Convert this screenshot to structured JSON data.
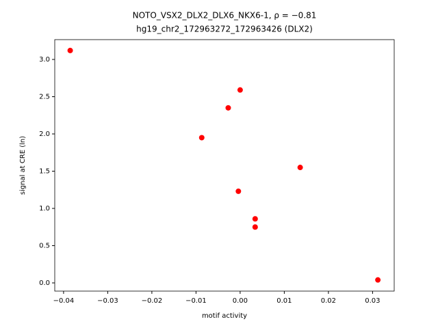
{
  "chart_data": {
    "type": "scatter",
    "title": "NOTO_VSX2_DLX2_DLX6_NKX6-1, ρ = −0.81",
    "subtitle": "hg19_chr2_172963272_172963426 (DLX2)",
    "x_label": "motif activity",
    "y_label": "signal at CRE (ln)",
    "series": [
      {
        "color": "#ff0000",
        "x": [
          -0.0385,
          0.0,
          -0.0027,
          -0.0087,
          0.0136,
          -0.0004,
          0.0034,
          0.0034,
          0.0312
        ],
        "values": [
          3.12,
          2.59,
          2.35,
          1.95,
          1.55,
          1.23,
          0.86,
          0.75,
          0.04
        ]
      }
    ],
    "xlim": [
      -0.042,
      0.0349
    ],
    "ylim": [
      -0.11,
      3.266
    ],
    "xticks": [
      {
        "value": -0.04,
        "label": "−0.04"
      },
      {
        "value": -0.03,
        "label": "−0.03"
      },
      {
        "value": -0.02,
        "label": "−0.02"
      },
      {
        "value": -0.01,
        "label": "−0.01"
      },
      {
        "value": 0,
        "label": "0.00"
      },
      0.01,
      0.02,
      0.03
    ],
    "yticks": [
      {
        "value": 0,
        "label": "0.0"
      },
      0.5,
      {
        "value": 1,
        "label": "1.0"
      },
      1.5,
      {
        "value": 2,
        "label": "2.0"
      },
      2.5,
      {
        "value": 3,
        "label": "3.0"
      }
    ],
    "grid": false
  }
}
